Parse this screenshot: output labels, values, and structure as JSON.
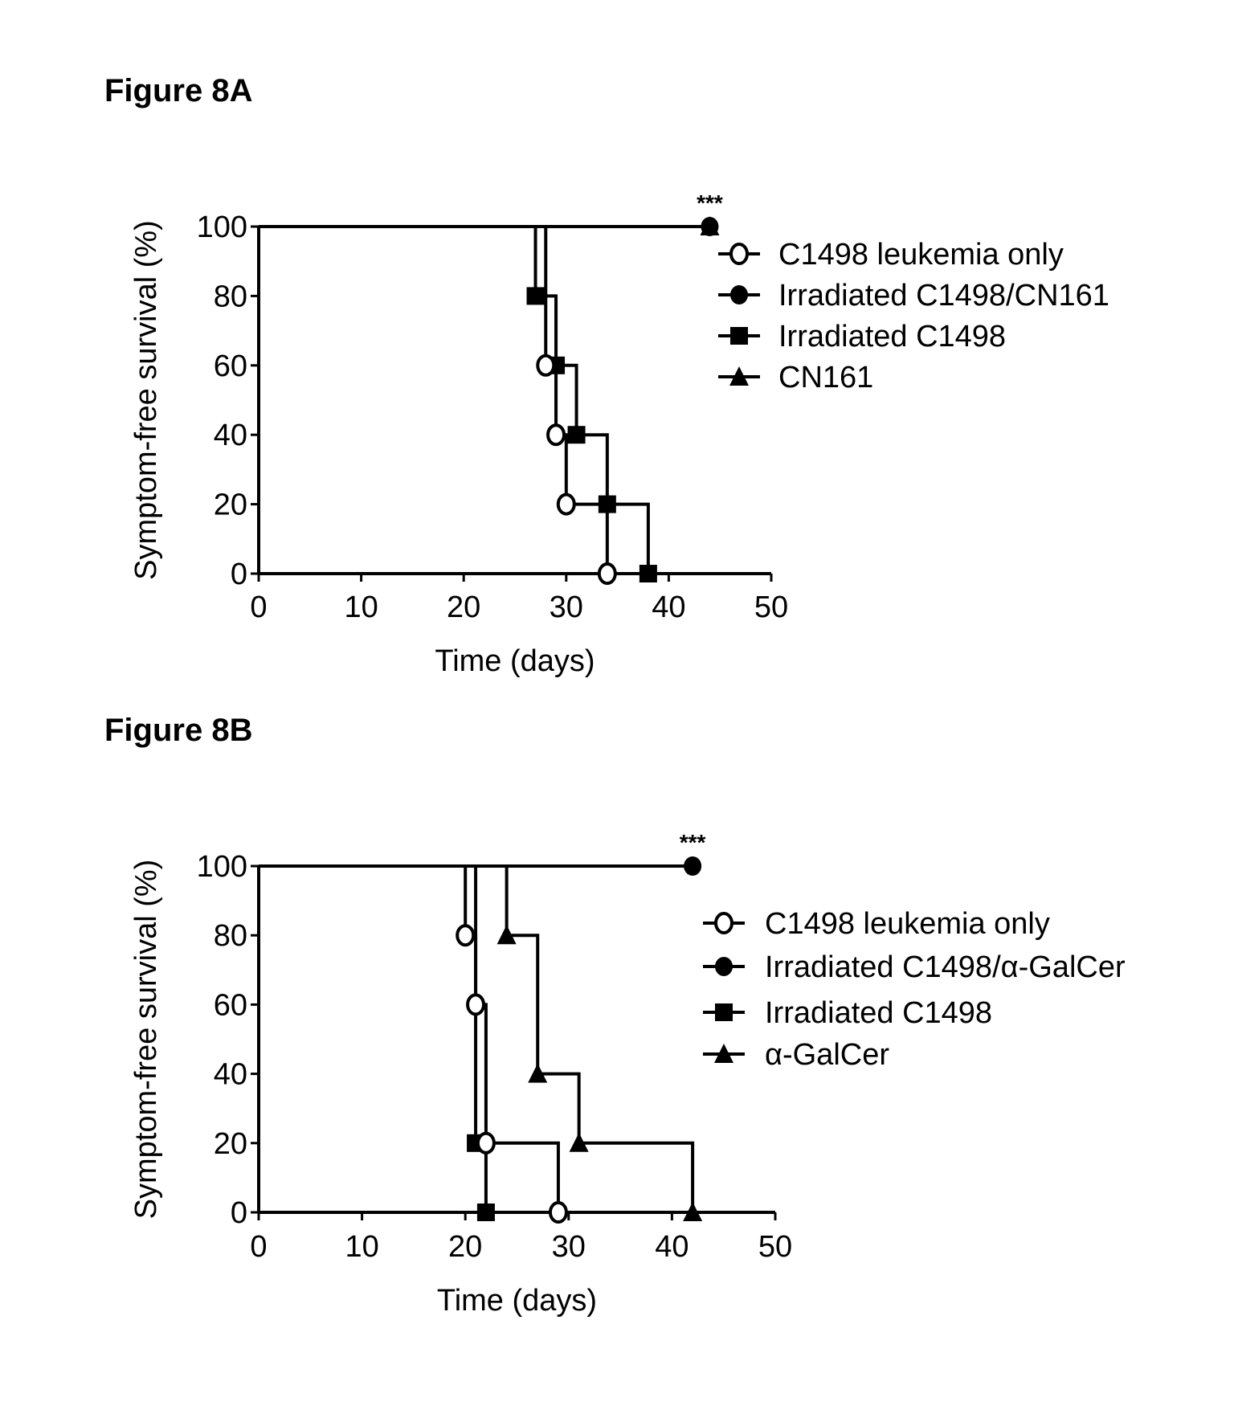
{
  "chart_data": [
    {
      "type": "line",
      "panel_title": "Figure 8A",
      "xlabel": "Time (days)",
      "ylabel": "Symptom-free survival (%)",
      "xlim": [
        0,
        50
      ],
      "ylim": [
        0,
        100
      ],
      "xticks": [
        "0",
        "10",
        "20",
        "30",
        "40",
        "50"
      ],
      "yticks": [
        "0",
        "20",
        "40",
        "60",
        "80",
        "100"
      ],
      "grid": false,
      "legend_position": "top-right",
      "annotation": "***",
      "series": [
        {
          "name": "C1498 leukemia only",
          "marker": "open-circle",
          "x": [
            0,
            28,
            29,
            30,
            34
          ],
          "y": [
            100,
            60,
            40,
            20,
            0
          ]
        },
        {
          "name": "Irradiated C1498/CN161",
          "marker": "filled-circle",
          "x": [
            0,
            44
          ],
          "y": [
            100,
            100
          ]
        },
        {
          "name": "Irradiated C1498",
          "marker": "filled-square",
          "x": [
            0,
            27,
            29,
            31,
            34,
            38
          ],
          "y": [
            100,
            80,
            60,
            40,
            20,
            0
          ]
        },
        {
          "name": "CN161",
          "marker": "filled-triangle",
          "x": [
            0,
            44
          ],
          "y": [
            100,
            100
          ]
        }
      ]
    },
    {
      "type": "line",
      "panel_title": "Figure 8B",
      "xlabel": "Time (days)",
      "ylabel": "Symptom-free survival (%)",
      "xlim": [
        0,
        50
      ],
      "ylim": [
        0,
        100
      ],
      "xticks": [
        "0",
        "10",
        "20",
        "30",
        "40",
        "50"
      ],
      "yticks": [
        "0",
        "20",
        "40",
        "60",
        "80",
        "100"
      ],
      "grid": false,
      "legend_position": "right",
      "annotation": "***",
      "series": [
        {
          "name": "C1498 leukemia only",
          "marker": "open-circle",
          "x": [
            0,
            20,
            21,
            22,
            29
          ],
          "y": [
            100,
            80,
            60,
            20,
            0
          ]
        },
        {
          "name": "Irradiated C1498/α-GalCer",
          "marker": "filled-circle",
          "x": [
            0,
            42
          ],
          "y": [
            100,
            100
          ]
        },
        {
          "name": "Irradiated C1498",
          "marker": "filled-square",
          "x": [
            0,
            21,
            22
          ],
          "y": [
            100,
            20,
            0
          ]
        },
        {
          "name": "α-GalCer",
          "marker": "filled-triangle",
          "x": [
            0,
            24,
            27,
            31,
            42
          ],
          "y": [
            100,
            80,
            40,
            20,
            0
          ]
        }
      ]
    }
  ]
}
